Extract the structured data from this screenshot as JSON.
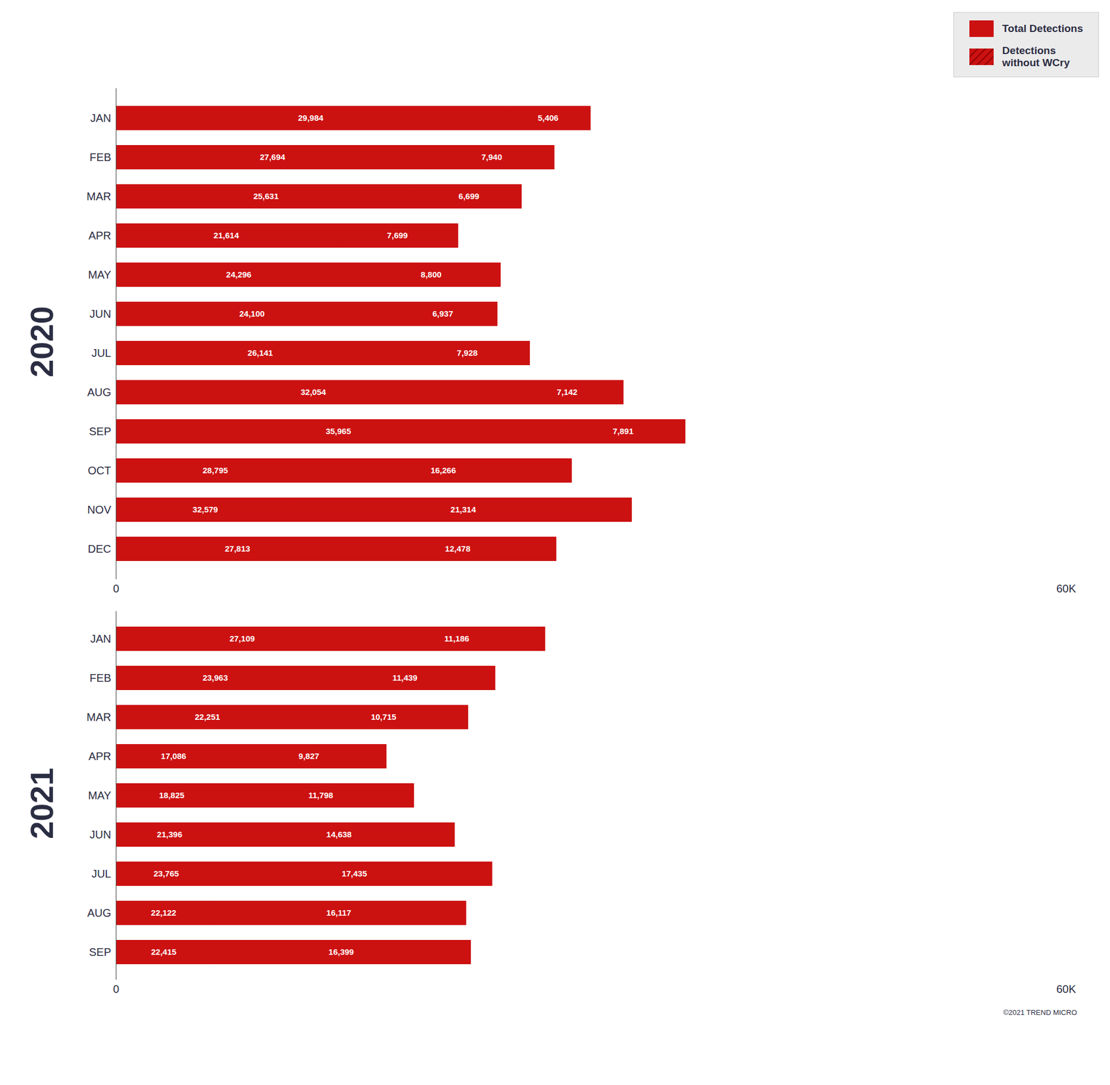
{
  "chart_data": [
    {
      "type": "bar",
      "orientation": "horizontal",
      "title": "2020",
      "categories": [
        "JAN",
        "FEB",
        "MAR",
        "APR",
        "MAY",
        "JUN",
        "JUL",
        "AUG",
        "SEP",
        "OCT",
        "NOV",
        "DEC"
      ],
      "series": [
        {
          "name": "Total Detections",
          "color": "#cc1111",
          "values": [
            29984,
            27694,
            25631,
            21614,
            24296,
            24100,
            26141,
            32054,
            35965,
            28795,
            32579,
            27813
          ],
          "value_labels": [
            "29,984",
            "27,694",
            "25,631",
            "21,614",
            "24,296",
            "24,100",
            "26,141",
            "32,054",
            "35,965",
            "28,795",
            "32,579",
            "27,813"
          ]
        },
        {
          "name": "Detections\nwithout WCry",
          "color": "#cc1111",
          "values": [
            5406,
            7940,
            6699,
            7699,
            8800,
            6937,
            7928,
            7142,
            7891,
            16266,
            21314,
            12478
          ],
          "value_labels": [
            "5,406",
            "7,940",
            "6,699",
            "7,699",
            "8,800",
            "6,937",
            "7,928",
            "7,142",
            "7,891",
            "16,266",
            "21,314",
            "12,478"
          ]
        }
      ],
      "xlim": [
        0,
        60000
      ],
      "xticks": [
        0,
        {
          "value": 60000,
          "label": "60K"
        }
      ],
      "data_labels": true,
      "legend": "upper right"
    },
    {
      "type": "bar",
      "orientation": "horizontal",
      "title": "2021",
      "categories": [
        "JAN",
        "FEB",
        "MAR",
        "APR",
        "MAY",
        "JUN",
        "JUL",
        "AUG",
        "SEP"
      ],
      "series": [
        {
          "name": "Total Detections",
          "color": "#cc1111",
          "values": [
            27109,
            23963,
            22251,
            17086,
            18825,
            21396,
            23765,
            22122,
            22415
          ],
          "value_labels": [
            "27,109",
            "23,963",
            "22,251",
            "17,086",
            "18,825",
            "21,396",
            "23,765",
            "22,122",
            "22,415"
          ]
        },
        {
          "name": "Detections\nwithout WCry",
          "color": "#cc1111",
          "values": [
            11186,
            11439,
            10715,
            9827,
            11798,
            14638,
            17435,
            16117,
            16399
          ],
          "value_labels": [
            "11,186",
            "11,439",
            "10,715",
            "9,827",
            "11,798",
            "14,638",
            "17,435",
            "16,117",
            "16,399"
          ]
        }
      ],
      "xlim": [
        0,
        60000
      ],
      "xticks": [
        0,
        {
          "value": 60000,
          "label": "60K"
        }
      ],
      "data_labels": true,
      "annotations": [
        "©2021 TREND MICRO"
      ]
    }
  ]
}
